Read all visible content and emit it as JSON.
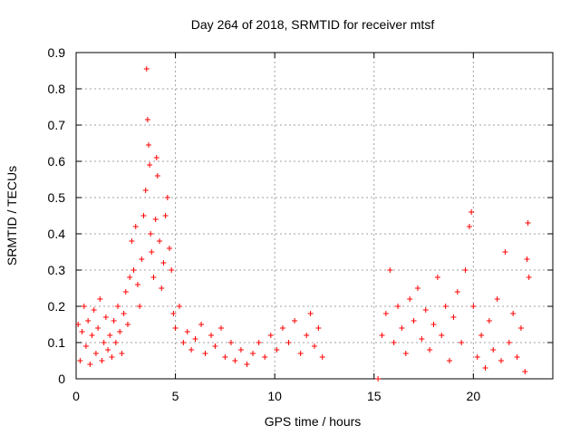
{
  "chart_data": {
    "type": "scatter",
    "title": "Day 264 of 2018, SRMTID for receiver mtsf",
    "xlabel": "GPS time / hours",
    "ylabel": "SRMTID / TECUs",
    "xlim": [
      0,
      24
    ],
    "ylim": [
      0,
      0.9
    ],
    "x_ticks": [
      0,
      5,
      10,
      15,
      20
    ],
    "x_tick_labels": [
      "0",
      "5",
      "10",
      "15",
      "20"
    ],
    "y_ticks": [
      0,
      0.1,
      0.2,
      0.3,
      0.4,
      0.5,
      0.6,
      0.7,
      0.8,
      0.9
    ],
    "y_tick_labels": [
      "0",
      "0.1",
      "0.2",
      "0.3",
      "0.4",
      "0.5",
      "0.6",
      "0.7",
      "0.8",
      "0.9"
    ],
    "grid": true,
    "marker": "+",
    "colors": {
      "points": "#ff0000",
      "axis": "#000000",
      "grid": "#a0a0a0"
    },
    "series": [
      {
        "name": "SRMTID",
        "points": [
          [
            0.1,
            0.15
          ],
          [
            0.2,
            0.05
          ],
          [
            0.3,
            0.13
          ],
          [
            0.4,
            0.2
          ],
          [
            0.5,
            0.09
          ],
          [
            0.6,
            0.16
          ],
          [
            0.7,
            0.04
          ],
          [
            0.8,
            0.12
          ],
          [
            0.9,
            0.19
          ],
          [
            1.0,
            0.07
          ],
          [
            1.1,
            0.14
          ],
          [
            1.2,
            0.22
          ],
          [
            1.3,
            0.05
          ],
          [
            1.4,
            0.1
          ],
          [
            1.5,
            0.17
          ],
          [
            1.6,
            0.08
          ],
          [
            1.7,
            0.12
          ],
          [
            1.8,
            0.06
          ],
          [
            1.9,
            0.16
          ],
          [
            2.0,
            0.1
          ],
          [
            2.1,
            0.2
          ],
          [
            2.2,
            0.13
          ],
          [
            2.3,
            0.07
          ],
          [
            2.4,
            0.18
          ],
          [
            2.5,
            0.24
          ],
          [
            2.6,
            0.15
          ],
          [
            2.7,
            0.28
          ],
          [
            2.8,
            0.38
          ],
          [
            2.9,
            0.3
          ],
          [
            3.0,
            0.42
          ],
          [
            3.1,
            0.26
          ],
          [
            3.2,
            0.2
          ],
          [
            3.3,
            0.33
          ],
          [
            3.4,
            0.45
          ],
          [
            3.5,
            0.52
          ],
          [
            3.55,
            0.855
          ],
          [
            3.6,
            0.715
          ],
          [
            3.65,
            0.645
          ],
          [
            3.7,
            0.59
          ],
          [
            3.75,
            0.4
          ],
          [
            3.8,
            0.35
          ],
          [
            3.9,
            0.28
          ],
          [
            4.0,
            0.44
          ],
          [
            4.05,
            0.61
          ],
          [
            4.1,
            0.56
          ],
          [
            4.2,
            0.38
          ],
          [
            4.3,
            0.25
          ],
          [
            4.4,
            0.32
          ],
          [
            4.5,
            0.45
          ],
          [
            4.6,
            0.5
          ],
          [
            4.7,
            0.36
          ],
          [
            4.8,
            0.3
          ],
          [
            4.9,
            0.18
          ],
          [
            5.0,
            0.14
          ],
          [
            5.2,
            0.2
          ],
          [
            5.4,
            0.1
          ],
          [
            5.6,
            0.13
          ],
          [
            5.8,
            0.08
          ],
          [
            6.0,
            0.11
          ],
          [
            6.3,
            0.15
          ],
          [
            6.5,
            0.07
          ],
          [
            6.8,
            0.12
          ],
          [
            7.0,
            0.09
          ],
          [
            7.3,
            0.14
          ],
          [
            7.5,
            0.06
          ],
          [
            7.8,
            0.1
          ],
          [
            8.0,
            0.05
          ],
          [
            8.3,
            0.08
          ],
          [
            8.6,
            0.04
          ],
          [
            8.9,
            0.07
          ],
          [
            9.2,
            0.1
          ],
          [
            9.5,
            0.06
          ],
          [
            9.8,
            0.12
          ],
          [
            10.1,
            0.08
          ],
          [
            10.4,
            0.14
          ],
          [
            10.7,
            0.1
          ],
          [
            11.0,
            0.16
          ],
          [
            11.3,
            0.07
          ],
          [
            11.6,
            0.12
          ],
          [
            11.8,
            0.18
          ],
          [
            12.0,
            0.09
          ],
          [
            12.2,
            0.14
          ],
          [
            12.4,
            0.06
          ],
          [
            15.2,
            0.0
          ],
          [
            15.4,
            0.12
          ],
          [
            15.6,
            0.18
          ],
          [
            15.8,
            0.3
          ],
          [
            16.0,
            0.1
          ],
          [
            16.2,
            0.2
          ],
          [
            16.4,
            0.14
          ],
          [
            16.6,
            0.07
          ],
          [
            16.8,
            0.22
          ],
          [
            17.0,
            0.16
          ],
          [
            17.2,
            0.25
          ],
          [
            17.4,
            0.11
          ],
          [
            17.6,
            0.19
          ],
          [
            17.8,
            0.08
          ],
          [
            18.0,
            0.15
          ],
          [
            18.2,
            0.28
          ],
          [
            18.4,
            0.12
          ],
          [
            18.6,
            0.2
          ],
          [
            18.8,
            0.05
          ],
          [
            19.0,
            0.17
          ],
          [
            19.2,
            0.24
          ],
          [
            19.4,
            0.1
          ],
          [
            19.6,
            0.3
          ],
          [
            19.8,
            0.42
          ],
          [
            19.9,
            0.46
          ],
          [
            20.0,
            0.2
          ],
          [
            20.2,
            0.06
          ],
          [
            20.4,
            0.12
          ],
          [
            20.6,
            0.03
          ],
          [
            20.8,
            0.16
          ],
          [
            21.0,
            0.08
          ],
          [
            21.2,
            0.22
          ],
          [
            21.4,
            0.05
          ],
          [
            21.6,
            0.35
          ],
          [
            21.8,
            0.1
          ],
          [
            22.0,
            0.18
          ],
          [
            22.2,
            0.06
          ],
          [
            22.4,
            0.14
          ],
          [
            22.6,
            0.02
          ],
          [
            22.7,
            0.33
          ],
          [
            22.75,
            0.43
          ],
          [
            22.8,
            0.28
          ]
        ]
      }
    ]
  }
}
